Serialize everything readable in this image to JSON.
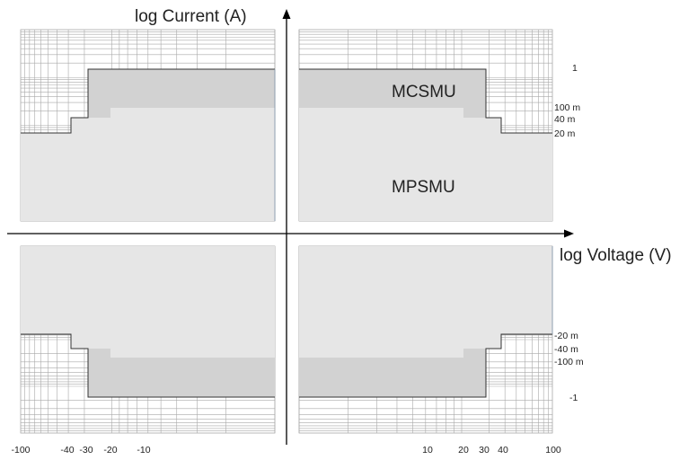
{
  "axes": {
    "y_label": "log Current (A)",
    "x_label": "log Voltage (V)"
  },
  "regions": {
    "mcsmu": "MCSMU",
    "mpsmu": "MPSMU"
  },
  "current_ticks_upper": [
    "1",
    "100 m",
    "40 m",
    "20 m"
  ],
  "current_ticks_lower": [
    "-20 m",
    "-40 m",
    "-100 m",
    "-1"
  ],
  "voltage_ticks_left": [
    "-100",
    "-40",
    "-30",
    "-20",
    "-10"
  ],
  "voltage_ticks_right": [
    "10",
    "20",
    "30",
    "40",
    "100"
  ],
  "colors": {
    "mpsmu_fill": "#e6e6e6",
    "mcsmu_fill": "#d2d2d2",
    "grid": "#a9a9a9",
    "outline": "#333333",
    "axis": "#000000"
  }
}
